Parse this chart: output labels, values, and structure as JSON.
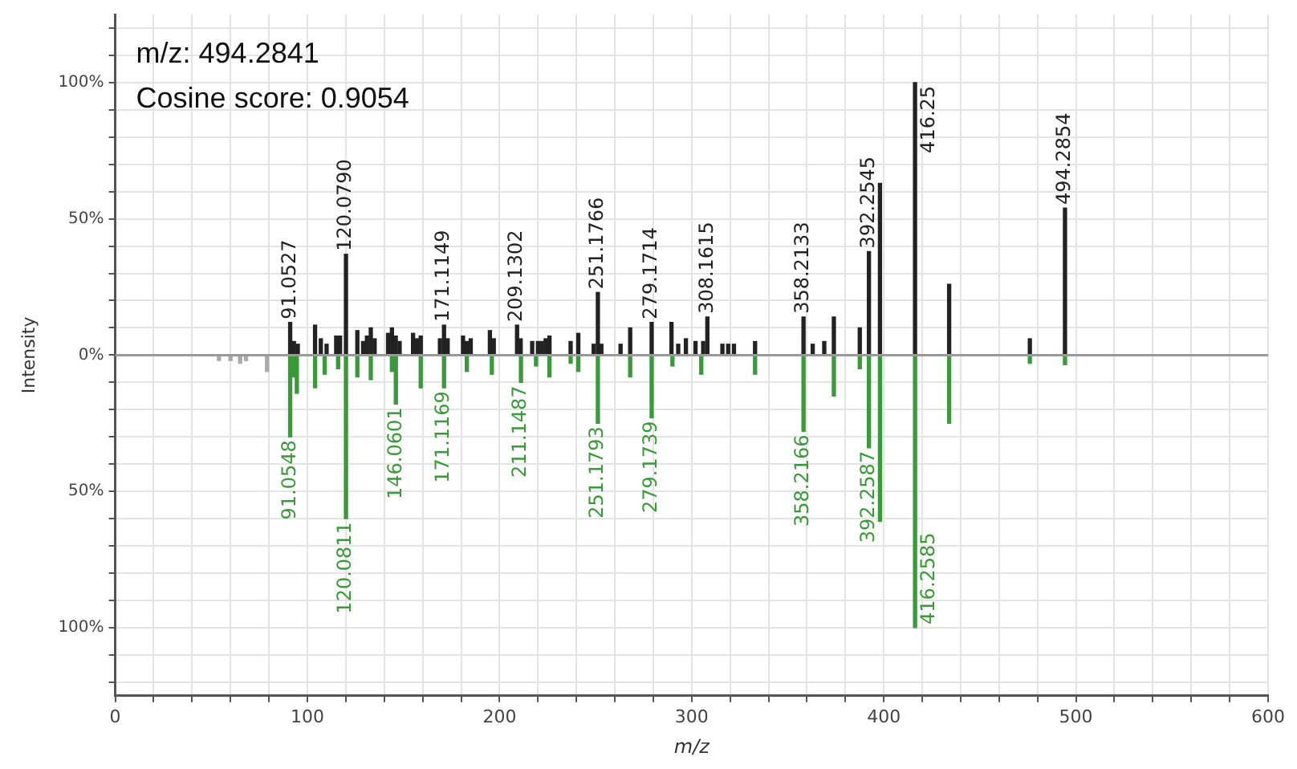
{
  "chart_data": {
    "type": "bar",
    "xlabel": "m/z",
    "ylabel": "Intensity",
    "annotations": [
      "m/z: 494.2841",
      "Cosine score: 0.9054",
      {
        "text": "91.0527",
        "x": 91.05,
        "y": 12
      },
      {
        "text": "120.0790",
        "x": 120.08,
        "y": 37
      },
      {
        "text": "171.1149",
        "x": 171.11,
        "y": 11
      },
      {
        "text": "209.1302",
        "x": 209.13,
        "y": 11
      },
      {
        "text": "251.1766",
        "x": 251.18,
        "y": 23
      },
      {
        "text": "279.1714",
        "x": 279.17,
        "y": 12
      },
      {
        "text": "308.1615",
        "x": 308.16,
        "y": 14
      },
      {
        "text": "358.2133",
        "x": 358.21,
        "y": 14
      },
      {
        "text": "392.2545",
        "x": 392.25,
        "y": 38
      },
      {
        "text": "416.25",
        "x": 416.25,
        "y": 100
      },
      {
        "text": "494.2854",
        "x": 494.29,
        "y": 54
      },
      {
        "text": "91.0548",
        "x": 91.05,
        "y": -30
      },
      {
        "text": "120.0811",
        "x": 120.08,
        "y": -60
      },
      {
        "text": "146.0601",
        "x": 146.06,
        "y": -18
      },
      {
        "text": "171.1169",
        "x": 171.12,
        "y": -12
      },
      {
        "text": "211.1487",
        "x": 211.15,
        "y": -10
      },
      {
        "text": "251.1793",
        "x": 251.18,
        "y": -25
      },
      {
        "text": "279.1739",
        "x": 279.17,
        "y": -23
      },
      {
        "text": "358.2166",
        "x": 358.22,
        "y": -28
      },
      {
        "text": "392.2587",
        "x": 392.26,
        "y": -34
      },
      {
        "text": "416.2585",
        "x": 416.26,
        "y": -100
      }
    ],
    "series": [
      {
        "color": "#222222",
        "x": [
          91.05,
          93,
          95,
          104,
          107,
          110,
          115,
          117,
          120.08,
          126,
          129,
          131,
          133,
          135,
          142,
          144,
          146,
          148,
          155,
          157,
          159,
          169,
          171.11,
          173,
          181,
          183,
          185,
          195,
          197,
          209.13,
          211,
          217,
          220,
          222,
          224,
          226,
          237,
          241,
          249,
          251.18,
          253,
          263,
          268,
          279.17,
          289.5,
          293,
          297,
          302,
          306,
          308.16,
          316,
          319,
          322,
          333,
          358.21,
          363,
          369,
          374,
          387.5,
          392.25,
          398,
          416.25,
          434,
          476,
          494.29
        ],
        "values": [
          12,
          5,
          4,
          11,
          6,
          4,
          7,
          7,
          37,
          9,
          5,
          7,
          10,
          6,
          8,
          10,
          7,
          5,
          8,
          6,
          7,
          6,
          11,
          6,
          7,
          5,
          6,
          9,
          6,
          11,
          6,
          5,
          5,
          5,
          6,
          7,
          5,
          8,
          4,
          23,
          4,
          4,
          10,
          12,
          12,
          4,
          6,
          5,
          5,
          14,
          4,
          4,
          4,
          5,
          14,
          4,
          5,
          14,
          10,
          38,
          63,
          100,
          26,
          6,
          54
        ]
      },
      {
        "color": "#3a9a3a",
        "x": [
          91.05,
          93,
          94.5,
          104,
          109,
          116,
          120.08,
          126,
          133,
          144,
          146.06,
          159,
          171.12,
          183,
          196,
          211.15,
          219,
          226,
          237,
          241,
          251.18,
          268,
          279.17,
          290,
          305,
          333,
          358.22,
          374,
          387.5,
          392.26,
          398,
          416.26,
          434,
          476,
          494.29
        ],
        "values": [
          -30,
          -8,
          -14,
          -12,
          -7,
          -5,
          -60,
          -8,
          -9,
          -6,
          -18,
          -12,
          -12,
          -6,
          -7,
          -10,
          -4,
          -8,
          -3,
          -6,
          -25,
          -8,
          -23,
          -4,
          -7,
          -7,
          -28,
          -15,
          -5,
          -34,
          -61,
          -100,
          -25,
          -3,
          -3.5
        ]
      },
      {
        "color": "#aaaaaa",
        "x": [
          54,
          60,
          65,
          68,
          79
        ],
        "values": [
          -2,
          -2,
          -3,
          -2,
          -6
        ]
      }
    ],
    "xlim": [
      0,
      600
    ],
    "xticks": [
      0,
      {
        "value": 20,
        "label": null
      },
      {
        "value": 40,
        "label": null
      },
      {
        "value": 60,
        "label": null
      },
      {
        "value": 80,
        "label": null
      },
      100,
      {
        "value": 120,
        "label": null
      },
      {
        "value": 140,
        "label": null
      },
      {
        "value": 160,
        "label": null
      },
      {
        "value": 180,
        "label": null
      },
      200,
      {
        "value": 220,
        "label": null
      },
      {
        "value": 240,
        "label": null
      },
      {
        "value": 260,
        "label": null
      },
      {
        "value": 280,
        "label": null
      },
      300,
      {
        "value": 320,
        "label": null
      },
      {
        "value": 340,
        "label": null
      },
      {
        "value": 360,
        "label": null
      },
      {
        "value": 380,
        "label": null
      },
      400,
      {
        "value": 420,
        "label": null
      },
      {
        "value": 440,
        "label": null
      },
      {
        "value": 460,
        "label": null
      },
      {
        "value": 480,
        "label": null
      },
      500,
      {
        "value": 520,
        "label": null
      },
      {
        "value": 540,
        "label": null
      },
      {
        "value": 560,
        "label": null
      },
      {
        "value": 580,
        "label": null
      },
      600
    ],
    "ylim": [
      -125,
      125
    ],
    "yticks": [
      {
        "value": -120,
        "label": null
      },
      {
        "value": -110,
        "label": null
      },
      {
        "value": -100,
        "label": "100%"
      },
      {
        "value": -90,
        "label": null
      },
      {
        "value": -80,
        "label": null
      },
      {
        "value": -70,
        "label": null
      },
      {
        "value": -60,
        "label": null
      },
      {
        "value": -50,
        "label": "50%"
      },
      {
        "value": -40,
        "label": null
      },
      {
        "value": -30,
        "label": null
      },
      {
        "value": -20,
        "label": null
      },
      {
        "value": -10,
        "label": null
      },
      {
        "value": 0,
        "label": "0%"
      },
      {
        "value": 10,
        "label": null
      },
      {
        "value": 20,
        "label": null
      },
      {
        "value": 30,
        "label": null
      },
      {
        "value": 40,
        "label": null
      },
      {
        "value": 50,
        "label": "50%"
      },
      {
        "value": 60,
        "label": null
      },
      {
        "value": 70,
        "label": null
      },
      {
        "value": 80,
        "label": null
      },
      {
        "value": 90,
        "label": null
      },
      {
        "value": 100,
        "label": "100%"
      },
      {
        "value": 110,
        "label": null
      },
      {
        "value": 120,
        "label": null
      }
    ],
    "ref_lines": [
      {
        "axis": "y",
        "value": 0,
        "color": "#999999"
      }
    ],
    "grid": true,
    "legend": false
  }
}
